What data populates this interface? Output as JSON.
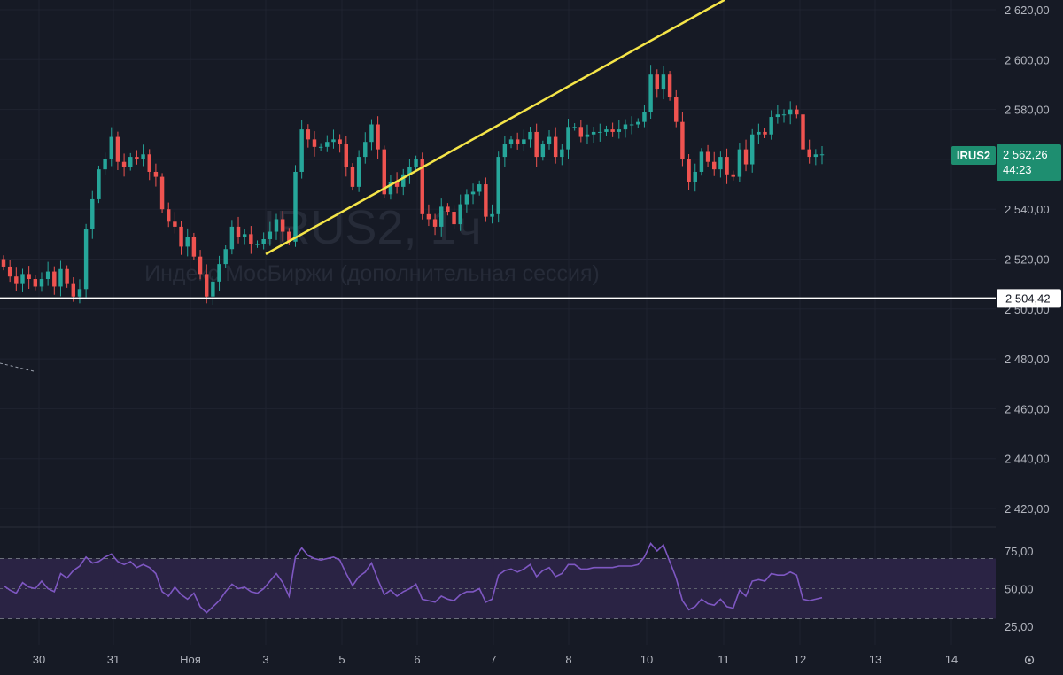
{
  "watermark": {
    "ticker": "IRUS2, 1ч",
    "description": "Индекс МосБиржи (дополнительная сессия)"
  },
  "price_axis": {
    "ticks": [
      "2 620,00",
      "2 600,00",
      "2 580,00",
      "2 560,00",
      "2 540,00",
      "2 520,00",
      "2 500,00",
      "2 480,00",
      "2 460,00",
      "2 440,00",
      "2 420,00"
    ]
  },
  "rsi_axis": {
    "ticks": [
      "75,00",
      "50,00",
      "25,00"
    ]
  },
  "time_axis": {
    "labels": [
      "30",
      "31",
      "Ноя",
      "3",
      "5",
      "6",
      "7",
      "8",
      "10",
      "11",
      "12",
      "13",
      "14"
    ]
  },
  "last_price": {
    "symbol": "IRUS2",
    "value": "2 562,26",
    "countdown": "44:23"
  },
  "hline": {
    "value": "2 504,42"
  },
  "settings_icon": "gear-icon",
  "colors": {
    "background": "#161a25",
    "up": "#26a69a",
    "down": "#ef5350",
    "trendline": "#f5e548",
    "hline": "#ffffff",
    "rsi": "#7e57c2",
    "rsi_band": "#2a2344",
    "label_bg": "#1e8e70"
  },
  "chart_data": [
    {
      "type": "candlestick",
      "title": "IRUS2, 1ч",
      "subtitle": "Индекс МосБиржи (дополнительная сессия)",
      "x_axis": [
        "30",
        "31",
        "Ноя",
        "3",
        "5",
        "6",
        "7",
        "8",
        "10",
        "11",
        "12",
        "13",
        "14"
      ],
      "ylim": [
        2410,
        2624
      ],
      "closes": [
        2517,
        2513,
        2510,
        2514,
        2512,
        2509,
        2512,
        2515,
        2509,
        2516,
        2510,
        2505,
        2508,
        2532,
        2544,
        2556,
        2560,
        2569,
        2559,
        2557,
        2561,
        2560,
        2562,
        2555,
        2553,
        2540,
        2535,
        2533,
        2525,
        2529,
        2521,
        2514,
        2505,
        2511,
        2518,
        2524,
        2533,
        2529,
        2530,
        2526,
        2526,
        2528,
        2531,
        2536,
        2531,
        2527,
        2555,
        2572,
        2568,
        2565,
        2565,
        2567,
        2568,
        2566,
        2557,
        2549,
        2561,
        2567,
        2574,
        2564,
        2546,
        2551,
        2549,
        2554,
        2557,
        2560,
        2538,
        2536,
        2533,
        2541,
        2539,
        2534,
        2542,
        2546,
        2547,
        2550,
        2537,
        2538,
        2561,
        2566,
        2568,
        2566,
        2568,
        2571,
        2561,
        2566,
        2569,
        2561,
        2564,
        2573,
        2573,
        2569,
        2570,
        2571,
        2571,
        2572,
        2571,
        2572,
        2574,
        2574,
        2575,
        2579,
        2594,
        2588,
        2594,
        2585,
        2575,
        2560,
        2551,
        2555,
        2563,
        2559,
        2556,
        2561,
        2554,
        2553,
        2564,
        2558,
        2570,
        2571,
        2570,
        2577,
        2578,
        2578,
        2580,
        2578,
        2564,
        2561,
        2562,
        2562
      ],
      "hline": 2504.42,
      "last_price": 2562.26,
      "trendline": {
        "x": [
          "3",
          "10"
        ],
        "y": [
          2522,
          2624
        ]
      }
    },
    {
      "type": "line",
      "title": "RSI",
      "ylim": [
        18,
        82
      ],
      "band": [
        30,
        70
      ],
      "midline": 50,
      "values": [
        52,
        49,
        47,
        54,
        51,
        50,
        55,
        50,
        48,
        60,
        57,
        62,
        65,
        71,
        67,
        68,
        71,
        73,
        68,
        66,
        68,
        64,
        66,
        64,
        60,
        48,
        45,
        51,
        46,
        43,
        47,
        38,
        34,
        38,
        42,
        48,
        53,
        50,
        51,
        48,
        47,
        50,
        55,
        60,
        54,
        45,
        71,
        77,
        72,
        70,
        69,
        70,
        71,
        69,
        60,
        52,
        58,
        61,
        67,
        56,
        46,
        49,
        45,
        48,
        50,
        53,
        43,
        42,
        41,
        45,
        43,
        42,
        46,
        48,
        48,
        50,
        41,
        43,
        59,
        62,
        63,
        61,
        63,
        66,
        58,
        62,
        64,
        58,
        60,
        66,
        66,
        63,
        63,
        64,
        64,
        64,
        64,
        65,
        65,
        65,
        66,
        71,
        80,
        75,
        79,
        68,
        57,
        42,
        36,
        38,
        43,
        40,
        39,
        43,
        38,
        37,
        49,
        45,
        55,
        56,
        55,
        60,
        59,
        59,
        61,
        59,
        43,
        42,
        43,
        44
      ]
    }
  ]
}
